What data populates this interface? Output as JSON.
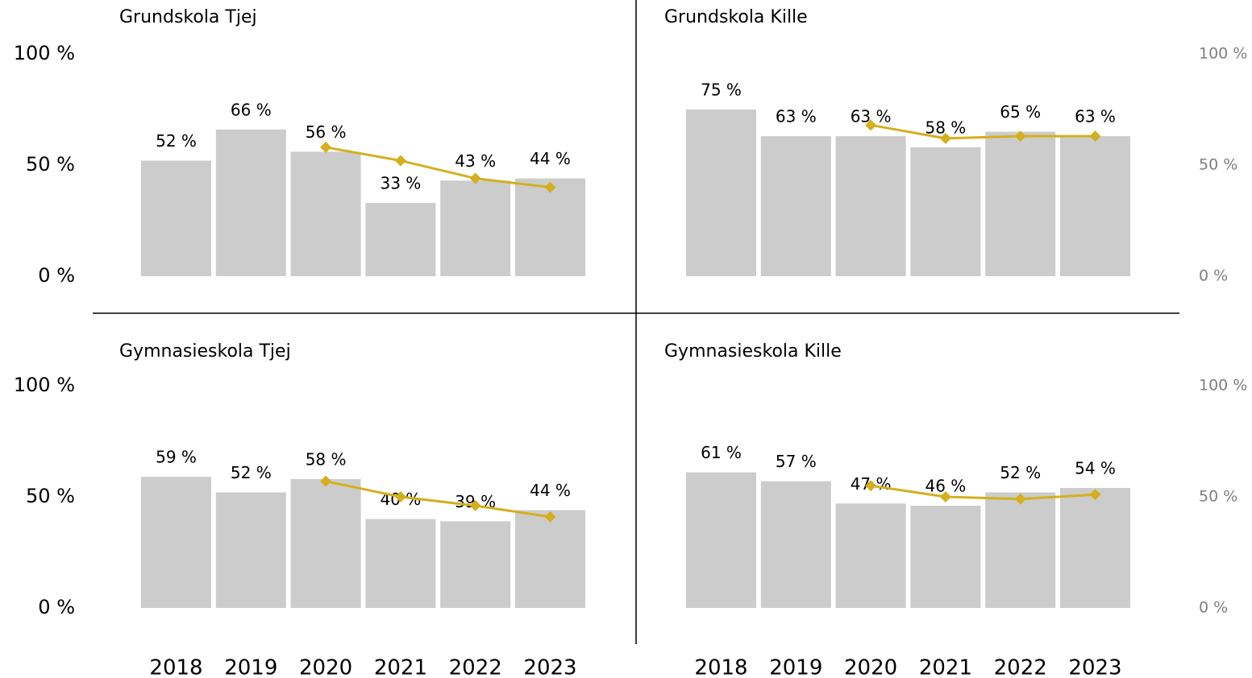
{
  "chart_data": [
    {
      "type": "bar",
      "title": "Grundskola Tjej",
      "ylim": [
        0,
        100
      ],
      "yticks": [
        {
          "value": 0,
          "label": "0 %"
        },
        {
          "value": 50,
          "label": "50 %"
        },
        {
          "value": 100,
          "label": "100 %"
        }
      ],
      "yaxis_side": "left",
      "axis_color": "#000000",
      "series": [
        {
          "type": "bar",
          "color": "#cccccc",
          "values": [
            52,
            66,
            56,
            33,
            43,
            44
          ],
          "value_labels": [
            "52 %",
            "66 %",
            "56 %",
            "33 %",
            "43 %",
            "44 %"
          ]
        },
        {
          "type": "line",
          "color": "#d4af1e",
          "values": [
            null,
            null,
            58,
            52,
            44,
            40
          ]
        }
      ]
    },
    {
      "type": "bar",
      "title": "Grundskola Kille",
      "ylim": [
        0,
        100
      ],
      "yticks": [
        {
          "value": 0,
          "label": "0 %"
        },
        {
          "value": 50,
          "label": "50 %"
        },
        {
          "value": 100,
          "label": "100 %"
        }
      ],
      "yaxis_side": "right",
      "axis_color": "#7f7f7f",
      "series": [
        {
          "type": "bar",
          "color": "#cccccc",
          "values": [
            75,
            63,
            63,
            58,
            65,
            63
          ],
          "value_labels": [
            "75 %",
            "63 %",
            "63 %",
            "58 %",
            "65 %",
            "63 %"
          ]
        },
        {
          "type": "line",
          "color": "#d4af1e",
          "values": [
            null,
            null,
            68,
            62,
            63,
            63
          ]
        }
      ]
    },
    {
      "type": "bar",
      "title": "Gymnasieskola Tjej",
      "ylim": [
        0,
        100
      ],
      "yticks": [
        {
          "value": 0,
          "label": "0 %"
        },
        {
          "value": 50,
          "label": "50 %"
        },
        {
          "value": 100,
          "label": "100 %"
        }
      ],
      "yaxis_side": "left",
      "axis_color": "#000000",
      "categories": [
        "2018",
        "2019",
        "2020",
        "2021",
        "2022",
        "2023"
      ],
      "series": [
        {
          "type": "bar",
          "color": "#cccccc",
          "values": [
            59,
            52,
            58,
            40,
            39,
            44
          ],
          "value_labels": [
            "59 %",
            "52 %",
            "58 %",
            "40 %",
            "39 %",
            "44 %"
          ]
        },
        {
          "type": "line",
          "color": "#d4af1e",
          "values": [
            null,
            null,
            57,
            50,
            46,
            41
          ]
        }
      ]
    },
    {
      "type": "bar",
      "title": "Gymnasieskola Kille",
      "ylim": [
        0,
        100
      ],
      "yticks": [
        {
          "value": 0,
          "label": "0 %"
        },
        {
          "value": 50,
          "label": "50 %"
        },
        {
          "value": 100,
          "label": "100 %"
        }
      ],
      "yaxis_side": "right",
      "axis_color": "#7f7f7f",
      "categories": [
        "2018",
        "2019",
        "2020",
        "2021",
        "2022",
        "2023"
      ],
      "series": [
        {
          "type": "bar",
          "color": "#cccccc",
          "values": [
            61,
            57,
            47,
            46,
            52,
            54
          ],
          "value_labels": [
            "61 %",
            "57 %",
            "47 %",
            "46 %",
            "52 %",
            "54 %"
          ]
        },
        {
          "type": "line",
          "color": "#d4af1e",
          "values": [
            null,
            null,
            55,
            50,
            49,
            51
          ]
        }
      ]
    }
  ]
}
